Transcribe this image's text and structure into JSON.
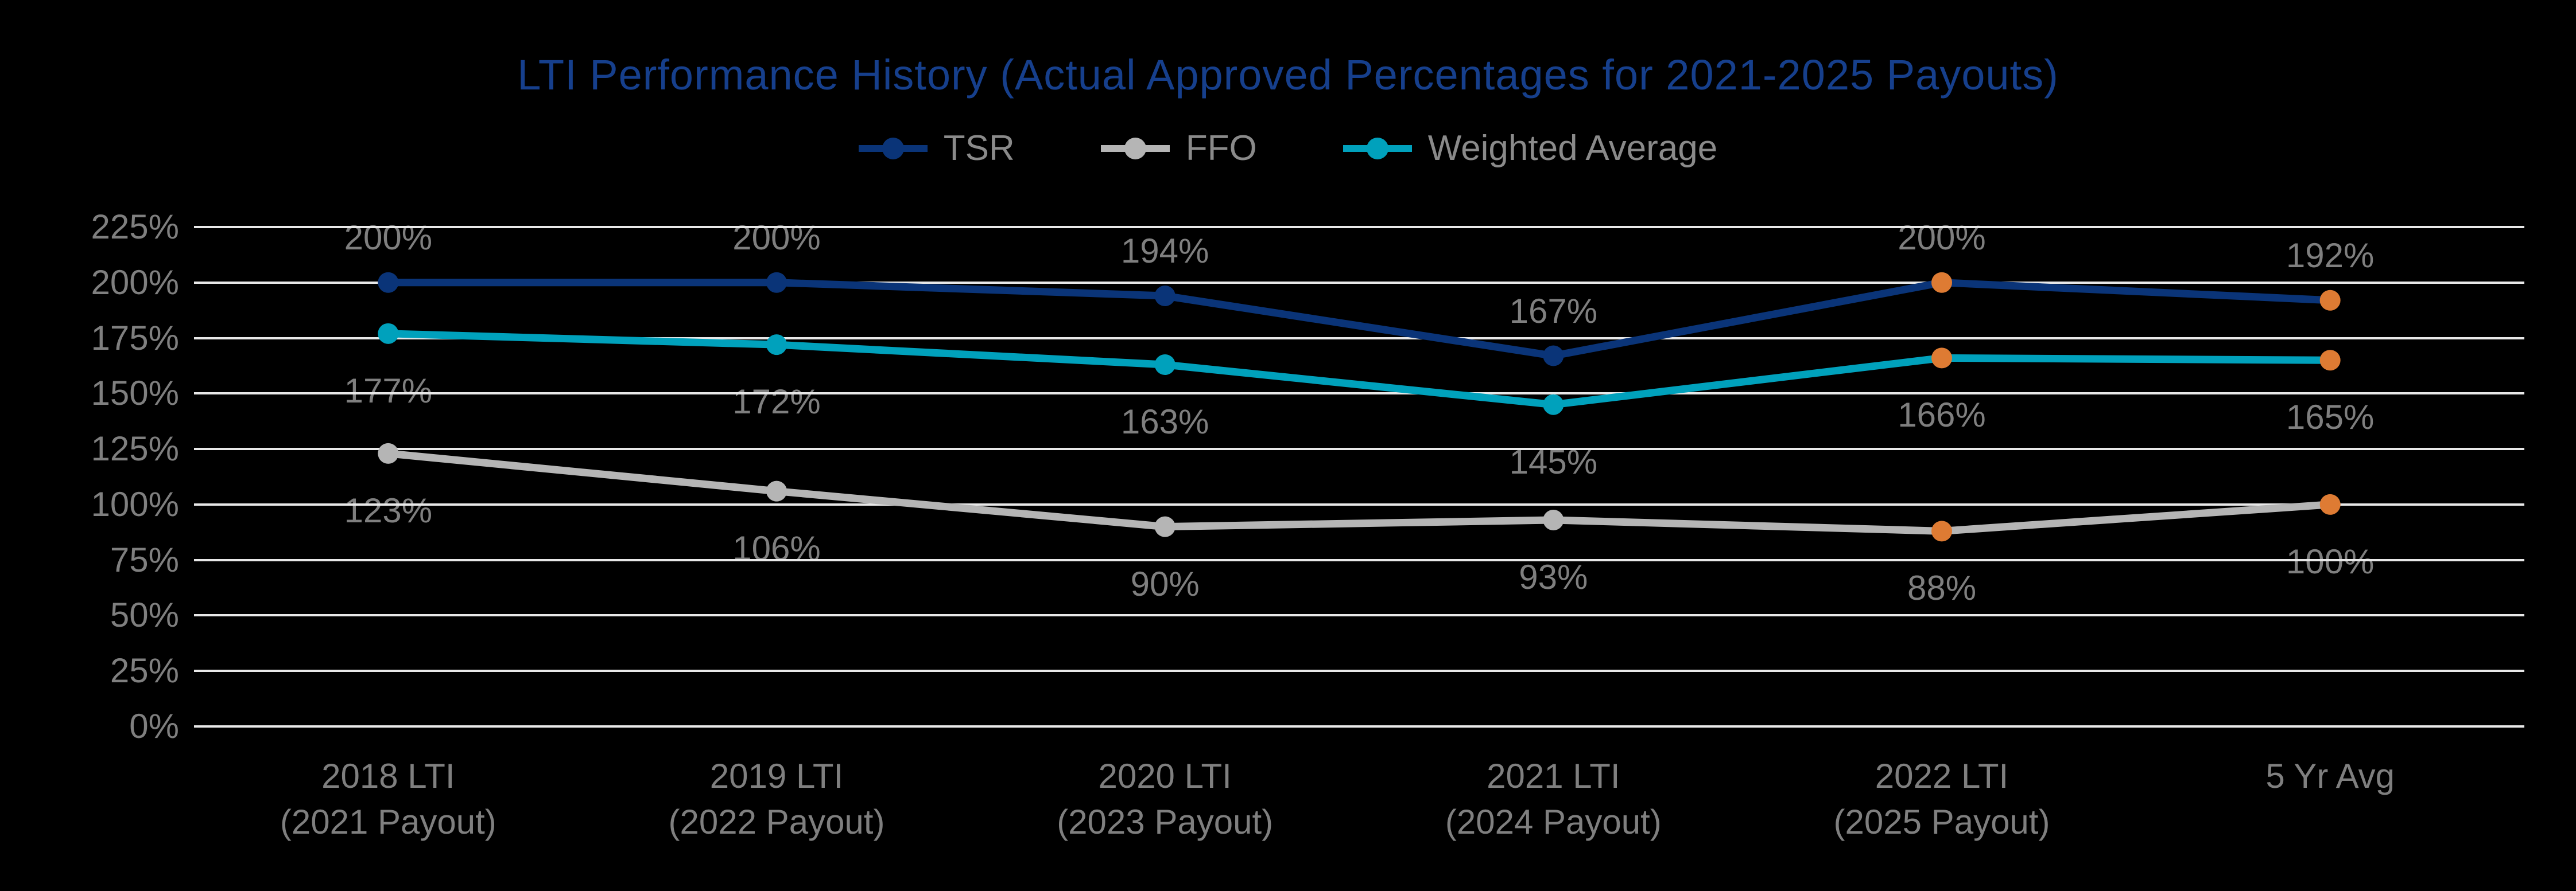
{
  "page": {
    "background_color": "#000000"
  },
  "chart_data": {
    "type": "line",
    "title": "LTI Performance History (Actual Approved Percentages for 2021-2025 Payouts)",
    "title_color": "#163F8C",
    "legend_position": "top",
    "grid": true,
    "gridline_color": "#E8E8E8",
    "label_color": "#7F7F7F",
    "legend_text_color": "#8A8A8A",
    "background_color": "#000000",
    "categories": [
      [
        "2018 LTI",
        "(2021 Payout)"
      ],
      [
        "2019 LTI",
        "(2022 Payout)"
      ],
      [
        "2020 LTI",
        "(2023 Payout)"
      ],
      [
        "2021 LTI",
        "(2024 Payout)"
      ],
      [
        "2022 LTI",
        "(2025 Payout)"
      ],
      [
        "5 Yr Avg"
      ]
    ],
    "series": [
      {
        "name": "TSR",
        "color": "#0A3478",
        "values": [
          200,
          200,
          194,
          167,
          200,
          192
        ],
        "data_labels": [
          "200%",
          "200%",
          "194%",
          "167%",
          "200%",
          "192%"
        ],
        "label_position": "above"
      },
      {
        "name": "FFO",
        "color": "#B5B5B5",
        "values": [
          123,
          106,
          90,
          93,
          88,
          100
        ],
        "data_labels": [
          "123%",
          "106%",
          "90%",
          "93%",
          "88%",
          "100%"
        ],
        "label_position": "below"
      },
      {
        "name": "Weighted Average",
        "color": "#00A1BC",
        "values": [
          177,
          172,
          163,
          145,
          166,
          165
        ],
        "data_labels": [
          "177%",
          "172%",
          "163%",
          "145%",
          "166%",
          "165%"
        ],
        "label_position": "below"
      }
    ],
    "highlight": {
      "columns": [
        4,
        5
      ],
      "marker_color": "#DE7B33"
    },
    "y_axis": {
      "min": 0,
      "max": 225,
      "step": 25,
      "ticks": [
        "225%",
        "200%",
        "175%",
        "150%",
        "125%",
        "100%",
        "75%",
        "50%",
        "25%",
        "0%"
      ]
    }
  }
}
